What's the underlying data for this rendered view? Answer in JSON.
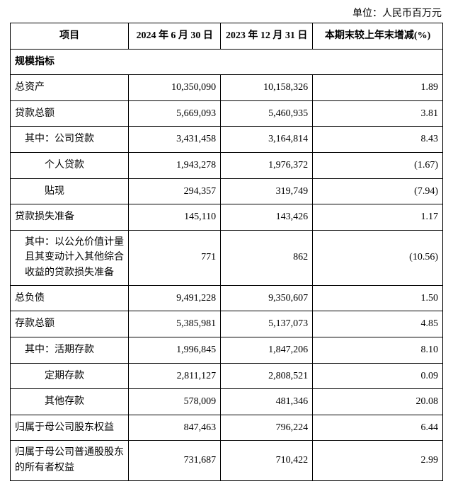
{
  "unit_text": "单位：人民币百万元",
  "headers": {
    "item": "项目",
    "col1": "2024 年 6 月 30 日",
    "col2": "2023 年 12 月 31 日",
    "change": "本期末较上年末增减(%)"
  },
  "section_title": "规模指标",
  "rows": [
    {
      "label": "总资产",
      "indent": 0,
      "v1": "10,350,090",
      "v2": "10,158,326",
      "chg": "1.89"
    },
    {
      "label": "贷款总额",
      "indent": 0,
      "v1": "5,669,093",
      "v2": "5,460,935",
      "chg": "3.81"
    },
    {
      "label": "其中：公司贷款",
      "indent": 1,
      "v1": "3,431,458",
      "v2": "3,164,814",
      "chg": "8.43"
    },
    {
      "label": "个人贷款",
      "indent": 2,
      "v1": "1,943,278",
      "v2": "1,976,372",
      "chg": "(1.67)"
    },
    {
      "label": "贴现",
      "indent": 2,
      "v1": "294,357",
      "v2": "319,749",
      "chg": "(7.94)"
    },
    {
      "label": "贷款损失准备",
      "indent": 0,
      "v1": "145,110",
      "v2": "143,426",
      "chg": "1.17"
    },
    {
      "label": "其中：以公允价值计量且其变动计入其他综合收益的贷款损失准备",
      "indent": 1,
      "multiline": true,
      "v1": "771",
      "v2": "862",
      "chg": "(10.56)"
    },
    {
      "label": "总负债",
      "indent": 0,
      "v1": "9,491,228",
      "v2": "9,350,607",
      "chg": "1.50"
    },
    {
      "label": "存款总额",
      "indent": 0,
      "v1": "5,385,981",
      "v2": "5,137,073",
      "chg": "4.85"
    },
    {
      "label": "其中：活期存款",
      "indent": 1,
      "v1": "1,996,845",
      "v2": "1,847,206",
      "chg": "8.10"
    },
    {
      "label": "定期存款",
      "indent": 2,
      "v1": "2,811,127",
      "v2": "2,808,521",
      "chg": "0.09"
    },
    {
      "label": "其他存款",
      "indent": 2,
      "v1": "578,009",
      "v2": "481,346",
      "chg": "20.08"
    },
    {
      "label": "归属于母公司股东权益",
      "indent": 0,
      "v1": "847,463",
      "v2": "796,224",
      "chg": "6.44"
    },
    {
      "label": "归属于母公司普通股股东的所有者权益",
      "indent": 0,
      "multiline": true,
      "v1": "731,687",
      "v2": "710,422",
      "chg": "2.99"
    }
  ]
}
